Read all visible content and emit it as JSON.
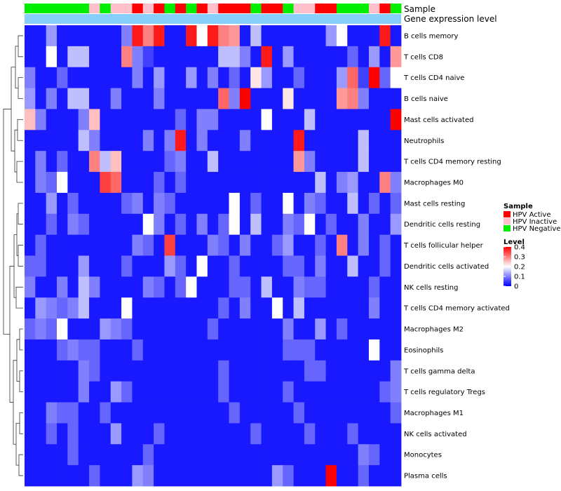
{
  "chart_data": {
    "type": "heatmap",
    "title": "",
    "xlabel": "",
    "ylabel": "",
    "rows": [
      "B cells memory",
      "T cells CD8",
      "T cells CD4 naive",
      "B cells naive",
      "Mast cells activated",
      "Neutrophils",
      "T cells CD4 memory resting",
      "Macrophages M0",
      "Mast cells resting",
      "Dendritic cells resting",
      "T cells follicular helper",
      "Dendritic cells activated",
      "NK cells resting",
      "T cells CD4 memory activated",
      "Macrophages M2",
      "Eosinophils",
      "T cells gamma delta",
      "T cells regulatory  Tregs",
      "Macrophages M1",
      "NK cells activated",
      "Monocytes",
      "Plasma cells"
    ],
    "column_annotations": {
      "sample_label": "Sample",
      "gene_label": "Gene expression level",
      "sample": [
        "N",
        "N",
        "N",
        "N",
        "N",
        "N",
        "I",
        "N",
        "I",
        "I",
        "A",
        "I",
        "A",
        "N",
        "A",
        "N",
        "A",
        "I",
        "A",
        "A",
        "A",
        "N",
        "A",
        "A",
        "N",
        "I",
        "I",
        "A",
        "A",
        "N",
        "N",
        "N",
        "I",
        "A",
        "N"
      ],
      "gene_color": "#87CEFA"
    },
    "legend_sample": {
      "title": "Sample",
      "entries": [
        {
          "key": "A",
          "label": "HPV Active",
          "color": "#FF0000"
        },
        {
          "key": "I",
          "label": "HPV Inactive",
          "color": "#FFC0CB"
        },
        {
          "key": "N",
          "label": "HPV Negative",
          "color": "#00EE00"
        }
      ]
    },
    "legend_level": {
      "title": "Level",
      "ticks": [
        0.4,
        0.3,
        0.2,
        0.1,
        0
      ],
      "tick_labels": [
        "0.4",
        "0.3",
        "0.2",
        "0.1",
        "0"
      ],
      "range": [
        0,
        0.4
      ],
      "colors": {
        "low": "#0000FF",
        "mid": "#FFFFFF",
        "high": "#FF0000"
      }
    },
    "values": [
      [
        0.02,
        0.02,
        0.12,
        0.02,
        0.02,
        0.02,
        0.02,
        0.02,
        0.02,
        0.1,
        0.38,
        0.3,
        0.38,
        0.02,
        0.02,
        0.38,
        0.2,
        0.38,
        0.3,
        0.28,
        0.02,
        0.15,
        0.02,
        0.02,
        0.02,
        0.02,
        0.02,
        0.02,
        0.12,
        0.2,
        0.02,
        0.02,
        0.02,
        0.38,
        0.02
      ],
      [
        0.02,
        0.02,
        0.2,
        0.02,
        0.15,
        0.15,
        0.02,
        0.02,
        0.02,
        0.3,
        0.1,
        0.05,
        0.02,
        0.02,
        0.02,
        0.02,
        0.02,
        0.02,
        0.15,
        0.15,
        0.1,
        0.02,
        0.38,
        0.02,
        0.12,
        0.02,
        0.02,
        0.02,
        0.02,
        0.02,
        0.08,
        0.02,
        0.12,
        0.02,
        0.28
      ],
      [
        0.1,
        0.02,
        0.02,
        0.08,
        0.02,
        0.02,
        0.02,
        0.02,
        0.02,
        0.02,
        0.1,
        0.02,
        0.12,
        0.02,
        0.02,
        0.12,
        0.02,
        0.1,
        0.02,
        0.08,
        0.02,
        0.22,
        0.12,
        0.02,
        0.02,
        0.08,
        0.02,
        0.02,
        0.02,
        0.12,
        0.32,
        0.05,
        0.4,
        0.08,
        0.2
      ],
      [
        0.12,
        0.02,
        0.1,
        0.02,
        0.15,
        0.15,
        0.02,
        0.02,
        0.1,
        0.02,
        0.02,
        0.02,
        0.1,
        0.02,
        0.02,
        0.02,
        0.02,
        0.02,
        0.32,
        0.1,
        0.4,
        0.02,
        0.02,
        0.02,
        0.22,
        0.02,
        0.02,
        0.02,
        0.02,
        0.28,
        0.3,
        0.1,
        0.02,
        0.02,
        0.02
      ],
      [
        0.25,
        0.1,
        0.02,
        0.02,
        0.02,
        0.1,
        0.25,
        0.02,
        0.02,
        0.02,
        0.02,
        0.02,
        0.02,
        0.02,
        0.08,
        0.02,
        0.1,
        0.1,
        0.02,
        0.02,
        0.02,
        0.02,
        0.2,
        0.02,
        0.02,
        0.02,
        0.15,
        0.02,
        0.02,
        0.02,
        0.02,
        0.02,
        0.02,
        0.02,
        0.4
      ],
      [
        0.02,
        0.02,
        0.02,
        0.02,
        0.02,
        0.15,
        0.1,
        0.02,
        0.02,
        0.02,
        0.02,
        0.1,
        0.02,
        0.1,
        0.38,
        0.02,
        0.1,
        0.02,
        0.02,
        0.02,
        0.1,
        0.02,
        0.02,
        0.02,
        0.02,
        0.38,
        0.02,
        0.02,
        0.02,
        0.02,
        0.02,
        0.15,
        0.02,
        0.02,
        0.02
      ],
      [
        0.02,
        0.1,
        0.02,
        0.08,
        0.02,
        0.02,
        0.3,
        0.15,
        0.25,
        0.02,
        0.02,
        0.02,
        0.02,
        0.08,
        0.1,
        0.02,
        0.02,
        0.15,
        0.02,
        0.02,
        0.02,
        0.02,
        0.02,
        0.02,
        0.02,
        0.28,
        0.1,
        0.02,
        0.02,
        0.02,
        0.02,
        0.15,
        0.02,
        0.02,
        0.02
      ],
      [
        0.02,
        0.1,
        0.08,
        0.2,
        0.02,
        0.02,
        0.02,
        0.35,
        0.32,
        0.02,
        0.02,
        0.02,
        0.08,
        0.02,
        0.08,
        0.02,
        0.02,
        0.02,
        0.02,
        0.02,
        0.02,
        0.02,
        0.02,
        0.02,
        0.02,
        0.02,
        0.02,
        0.15,
        0.02,
        0.1,
        0.12,
        0.02,
        0.02,
        0.3,
        0.1
      ],
      [
        0.02,
        0.02,
        0.12,
        0.02,
        0.08,
        0.02,
        0.02,
        0.02,
        0.02,
        0.08,
        0.1,
        0.02,
        0.1,
        0.08,
        0.02,
        0.02,
        0.02,
        0.02,
        0.02,
        0.2,
        0.02,
        0.08,
        0.02,
        0.02,
        0.2,
        0.02,
        0.1,
        0.08,
        0.02,
        0.02,
        0.15,
        0.02,
        0.08,
        0.02,
        0.08
      ],
      [
        0.02,
        0.02,
        0.08,
        0.02,
        0.1,
        0.08,
        0.02,
        0.02,
        0.02,
        0.02,
        0.02,
        0.2,
        0.1,
        0.02,
        0.08,
        0.02,
        0.1,
        0.02,
        0.08,
        0.2,
        0.02,
        0.15,
        0.02,
        0.02,
        0.1,
        0.08,
        0.2,
        0.02,
        0.08,
        0.02,
        0.02,
        0.1,
        0.02,
        0.02,
        0.12
      ],
      [
        0.02,
        0.08,
        0.02,
        0.02,
        0.02,
        0.02,
        0.02,
        0.02,
        0.02,
        0.02,
        0.1,
        0.08,
        0.02,
        0.35,
        0.02,
        0.02,
        0.02,
        0.1,
        0.08,
        0.02,
        0.1,
        0.02,
        0.02,
        0.08,
        0.12,
        0.02,
        0.02,
        0.08,
        0.02,
        0.3,
        0.02,
        0.1,
        0.02,
        0.08,
        0.02
      ],
      [
        0.08,
        0.08,
        0.02,
        0.02,
        0.02,
        0.12,
        0.02,
        0.02,
        0.02,
        0.08,
        0.02,
        0.02,
        0.02,
        0.12,
        0.08,
        0.02,
        0.2,
        0.02,
        0.02,
        0.08,
        0.02,
        0.02,
        0.02,
        0.02,
        0.08,
        0.08,
        0.02,
        0.1,
        0.02,
        0.02,
        0.15,
        0.02,
        0.02,
        0.08,
        0.02
      ],
      [
        0.1,
        0.02,
        0.02,
        0.1,
        0.02,
        0.15,
        0.1,
        0.02,
        0.02,
        0.02,
        0.02,
        0.1,
        0.08,
        0.02,
        0.08,
        0.2,
        0.02,
        0.02,
        0.02,
        0.08,
        0.08,
        0.02,
        0.15,
        0.02,
        0.02,
        0.1,
        0.08,
        0.08,
        0.02,
        0.02,
        0.02,
        0.02,
        0.08,
        0.02,
        0.02
      ],
      [
        0.02,
        0.12,
        0.1,
        0.08,
        0.1,
        0.15,
        0.02,
        0.02,
        0.02,
        0.2,
        0.02,
        0.02,
        0.02,
        0.02,
        0.02,
        0.02,
        0.02,
        0.02,
        0.08,
        0.02,
        0.1,
        0.02,
        0.02,
        0.2,
        0.02,
        0.15,
        0.02,
        0.02,
        0.02,
        0.02,
        0.02,
        0.02,
        0.1,
        0.02,
        0.02
      ],
      [
        0.08,
        0.1,
        0.08,
        0.2,
        0.02,
        0.02,
        0.02,
        0.12,
        0.1,
        0.08,
        0.02,
        0.02,
        0.02,
        0.02,
        0.02,
        0.02,
        0.02,
        0.08,
        0.02,
        0.02,
        0.02,
        0.02,
        0.02,
        0.02,
        0.1,
        0.02,
        0.02,
        0.12,
        0.02,
        0.08,
        0.02,
        0.02,
        0.02,
        0.02,
        0.02
      ],
      [
        0.02,
        0.02,
        0.02,
        0.08,
        0.1,
        0.08,
        0.08,
        0.02,
        0.02,
        0.02,
        0.08,
        0.02,
        0.02,
        0.02,
        0.02,
        0.02,
        0.02,
        0.02,
        0.02,
        0.02,
        0.02,
        0.02,
        0.02,
        0.02,
        0.08,
        0.08,
        0.08,
        0.02,
        0.02,
        0.02,
        0.02,
        0.02,
        0.2,
        0.02,
        0.02
      ],
      [
        0.02,
        0.02,
        0.02,
        0.02,
        0.02,
        0.1,
        0.08,
        0.02,
        0.02,
        0.02,
        0.02,
        0.02,
        0.02,
        0.02,
        0.02,
        0.02,
        0.02,
        0.02,
        0.08,
        0.02,
        0.02,
        0.02,
        0.02,
        0.02,
        0.02,
        0.02,
        0.08,
        0.08,
        0.02,
        0.02,
        0.02,
        0.02,
        0.02,
        0.02,
        0.1
      ],
      [
        0.02,
        0.02,
        0.02,
        0.02,
        0.02,
        0.1,
        0.02,
        0.02,
        0.12,
        0.08,
        0.02,
        0.02,
        0.02,
        0.02,
        0.02,
        0.02,
        0.02,
        0.02,
        0.08,
        0.02,
        0.02,
        0.02,
        0.02,
        0.02,
        0.08,
        0.02,
        0.02,
        0.02,
        0.02,
        0.02,
        0.02,
        0.02,
        0.02,
        0.08,
        0.1
      ],
      [
        0.02,
        0.02,
        0.1,
        0.08,
        0.08,
        0.02,
        0.02,
        0.08,
        0.02,
        0.02,
        0.02,
        0.02,
        0.02,
        0.02,
        0.02,
        0.02,
        0.02,
        0.02,
        0.02,
        0.08,
        0.02,
        0.02,
        0.02,
        0.02,
        0.02,
        0.08,
        0.02,
        0.02,
        0.02,
        0.02,
        0.02,
        0.02,
        0.02,
        0.02,
        0.08
      ],
      [
        0.02,
        0.02,
        0.08,
        0.02,
        0.08,
        0.02,
        0.02,
        0.02,
        0.12,
        0.02,
        0.02,
        0.02,
        0.08,
        0.02,
        0.02,
        0.02,
        0.02,
        0.02,
        0.02,
        0.02,
        0.02,
        0.08,
        0.02,
        0.02,
        0.02,
        0.02,
        0.08,
        0.02,
        0.02,
        0.02,
        0.08,
        0.02,
        0.02,
        0.02,
        0.02
      ],
      [
        0.02,
        0.02,
        0.02,
        0.02,
        0.08,
        0.02,
        0.02,
        0.02,
        0.02,
        0.02,
        0.02,
        0.08,
        0.02,
        0.02,
        0.02,
        0.02,
        0.02,
        0.02,
        0.02,
        0.02,
        0.02,
        0.02,
        0.02,
        0.02,
        0.02,
        0.02,
        0.02,
        0.02,
        0.02,
        0.02,
        0.02,
        0.1,
        0.08,
        0.02,
        0.02
      ],
      [
        0.02,
        0.02,
        0.02,
        0.02,
        0.02,
        0.02,
        0.08,
        0.02,
        0.02,
        0.02,
        0.12,
        0.1,
        0.02,
        0.02,
        0.02,
        0.02,
        0.02,
        0.02,
        0.02,
        0.02,
        0.02,
        0.02,
        0.02,
        0.12,
        0.08,
        0.02,
        0.02,
        0.02,
        0.4,
        0.02,
        0.02,
        0.08,
        0.02,
        0.02,
        0.02
      ]
    ]
  }
}
